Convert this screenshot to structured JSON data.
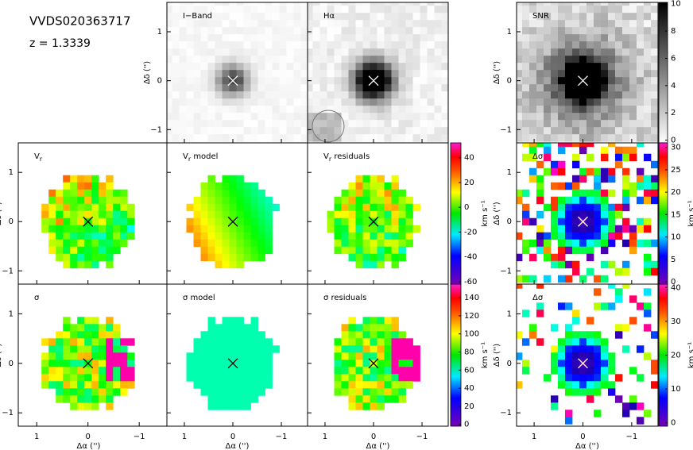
{
  "header": {
    "object": "VVDS020363717",
    "redshift": "z = 1.3339"
  },
  "axes": {
    "x_label": "Δα ('')",
    "y_label": "Δδ ('')",
    "xlim": [
      1.36,
      -1.54
    ],
    "ylim": [
      -1.27,
      1.6
    ],
    "xticks": [
      1,
      0,
      {
        "value": -1,
        "label": "−1"
      }
    ],
    "yticks": [
      1,
      0,
      {
        "value": -1,
        "label": "−1"
      }
    ]
  },
  "panels": [
    {
      "label": "I−Band"
    },
    {
      "label": "Hα"
    },
    {
      "label": "SNR"
    },
    {
      "label": "V",
      "sub": "r"
    },
    {
      "label": "V",
      "sub": "r",
      "suffix": " model"
    },
    {
      "label": "V",
      "sub": "r",
      "suffix": " residuals"
    },
    {
      "label": "Δσ"
    },
    {
      "label": "σ"
    },
    {
      "label": "σ model"
    },
    {
      "label": "σ residuals"
    },
    {
      "label": "Δσ"
    }
  ],
  "colorbars": [
    {
      "lim": [
        -0.2,
        10.1
      ],
      "ticks": [
        0,
        2,
        4,
        6,
        8,
        10
      ],
      "colormap": "gray"
    },
    {
      "lim": [
        -0.5,
        31
      ],
      "ticks": [
        0,
        5,
        10,
        15,
        20,
        25,
        30
      ],
      "unit": "km s⁻¹",
      "colormap": "rainbow"
    },
    {
      "lim": [
        -62,
        52
      ],
      "ticks": [
        40,
        20,
        0,
        -20,
        -40,
        -60
      ],
      "unit": "km s⁻¹",
      "colormap": "rainbow"
    },
    {
      "lim": [
        -2,
        155
      ],
      "ticks": [
        140,
        120,
        100,
        80,
        60,
        40,
        20,
        0
      ],
      "unit": "km s⁻¹",
      "colormap": "rainbow"
    },
    {
      "lim": [
        -1,
        41
      ],
      "ticks": [
        0,
        10,
        20,
        30,
        40
      ],
      "unit": "km s⁻¹",
      "colormap": "rainbow"
    }
  ]
}
